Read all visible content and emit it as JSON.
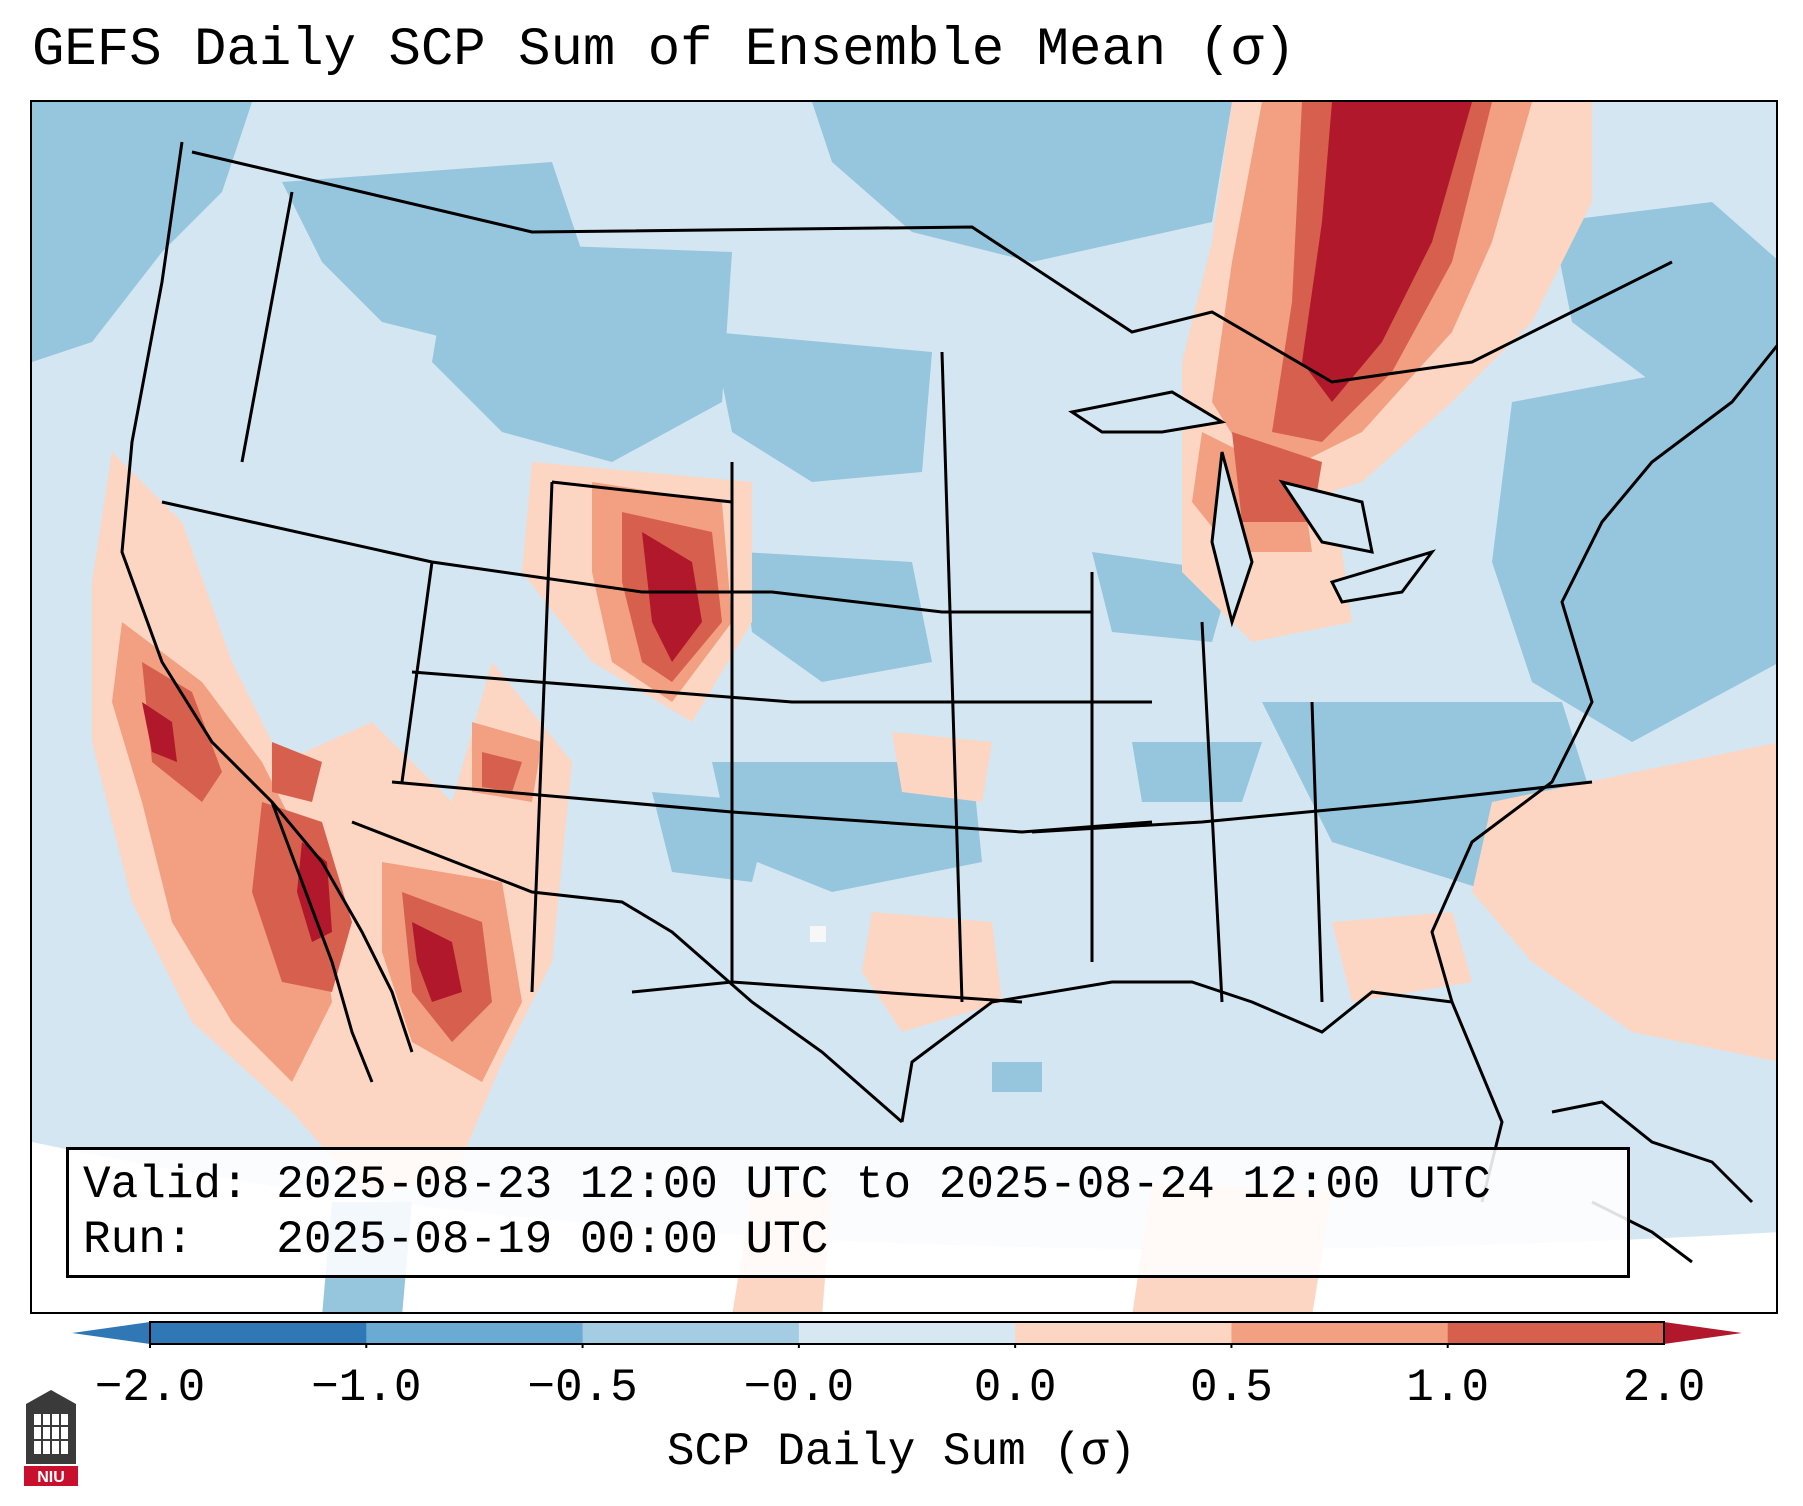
{
  "title": "GEFS Daily SCP Sum of Ensemble Mean (σ)",
  "valid_line": "Valid: 2025-08-23 12:00 UTC to 2025-08-24 12:00 UTC",
  "run_line": "Run:   2025-08-19 00:00 UTC",
  "colorbar": {
    "label": "SCP Daily Sum (σ)",
    "ticks": [
      "−2.0",
      "−1.0",
      "−0.5",
      "−0.0",
      "0.0",
      "0.5",
      "1.0",
      "2.0"
    ],
    "colors": [
      "#2f78b5",
      "#6aaad3",
      "#a4cde3",
      "#d7e8f2",
      "#fcd6c3",
      "#f2a081",
      "#d6604d",
      "#b2182b"
    ]
  },
  "palette": {
    "neg_strong": "#6aaad3",
    "neg_mod": "#96c5de",
    "neg_weak": "#d4e6f1",
    "pos_weak": "#fcd6c3",
    "pos_mod": "#f2a081",
    "pos_strong": "#d6604d",
    "pos_max": "#b2182b"
  },
  "logo_text": "NIU"
}
